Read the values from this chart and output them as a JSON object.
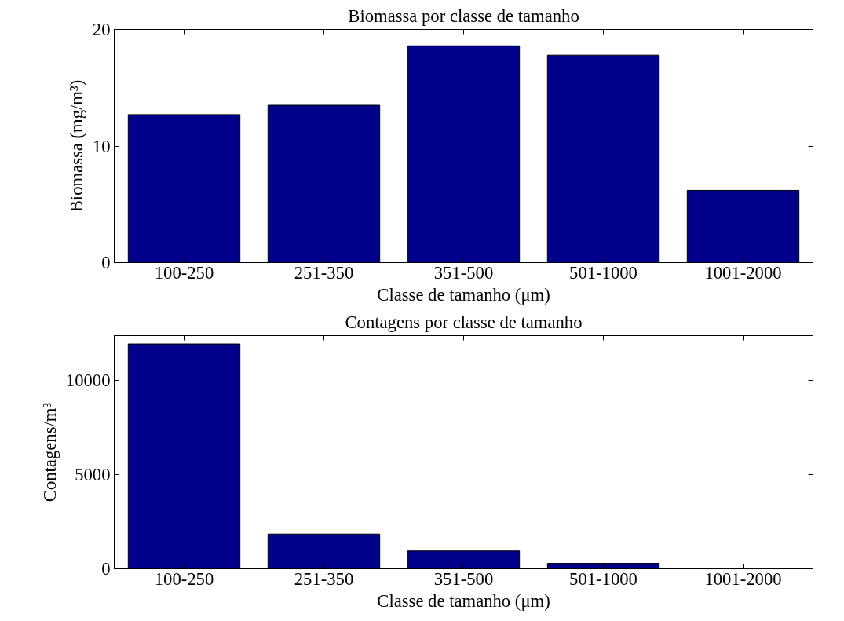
{
  "chart_data": [
    {
      "type": "bar",
      "title": "Biomassa por classe de tamanho",
      "xlabel": "Classe de tamanho (μm)",
      "ylabel": "Biomassa (mg/m³)",
      "categories": [
        "100-250",
        "251-350",
        "351-500",
        "501-1000",
        "1001-2000"
      ],
      "values": [
        12.7,
        13.5,
        18.6,
        17.8,
        6.2
      ],
      "color": "#00008b",
      "ylim": [
        0,
        20
      ],
      "yticks": [
        0,
        10,
        20
      ],
      "grid": false
    },
    {
      "type": "bar",
      "title": "Contagens por classe de tamanho",
      "xlabel": "Classe de tamanho (μm)",
      "ylabel": "Contagens/m³",
      "categories": [
        "100-250",
        "251-350",
        "351-500",
        "501-1000",
        "1001-2000"
      ],
      "values": [
        11960,
        1850,
        950,
        290,
        40
      ],
      "color": "#00008b",
      "ylim": [
        0,
        12400
      ],
      "yticks": [
        0,
        5000,
        10000
      ],
      "grid": false
    }
  ]
}
